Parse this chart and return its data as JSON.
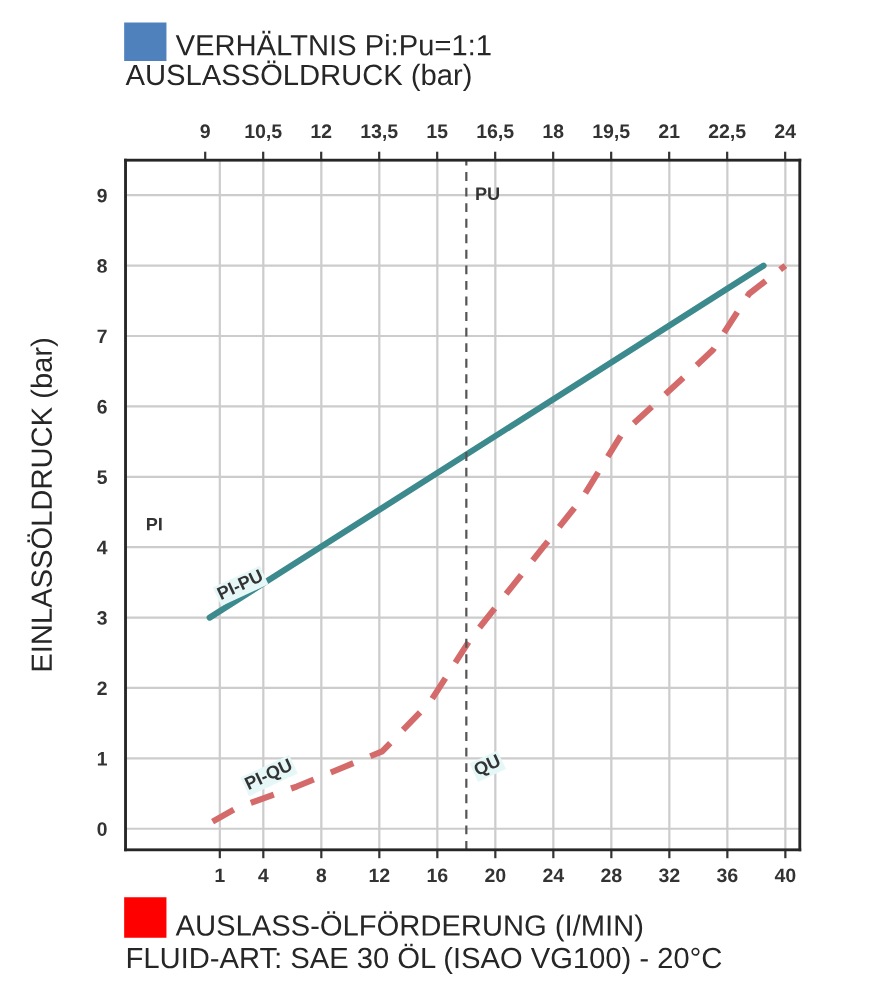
{
  "chart_data": {
    "type": "line",
    "title": "VERHÄLTNIS Pi:Pu=1:1",
    "x2label": "AUSLASSÖLDRUCK (bar)",
    "xlabel": "AUSLASS-ÖLFÖRDERUNG (I/MIN)",
    "ylabel": "EINLASSÖLDRUCK (bar)",
    "series": [
      {
        "color": "#3d8a8e",
        "line_style": "solid",
        "x": [
          0.3,
          38.5
        ],
        "values": [
          3.0,
          8.0
        ]
      },
      {
        "color": "#d46a6a",
        "line_style": "dashed",
        "x": [
          0.5,
          2.2,
          6.3,
          12.2,
          15.5,
          18.3,
          23.3,
          26,
          28.7,
          32.4,
          35,
          37.5,
          40
        ],
        "values": [
          0.1,
          0.3,
          0.6,
          1.1,
          1.8,
          2.7,
          4.0,
          4.7,
          5.6,
          6.3,
          6.8,
          7.6,
          8.0
        ]
      }
    ],
    "xlim": [
      -5.5,
      41
    ],
    "xticks": [
      1,
      4,
      8,
      12,
      16,
      20,
      24,
      28,
      32,
      36,
      40
    ],
    "x2lim": [
      6.94,
      24.38
    ],
    "x2ticks": [
      9,
      {
        "value": 10.5,
        "label": "10,5"
      },
      12,
      {
        "value": 13.5,
        "label": "13,5"
      },
      15,
      {
        "value": 16.5,
        "label": "16,5"
      },
      18,
      {
        "value": 19.5,
        "label": "19,5"
      },
      21,
      {
        "value": 22.5,
        "label": "22,5"
      },
      24
    ],
    "ylim": [
      -0.3,
      9.5
    ],
    "yticks": [
      0,
      1,
      2,
      3,
      4,
      5,
      6,
      7,
      8,
      9
    ],
    "grid": true,
    "ref_lines": [
      {
        "axis": "x",
        "value": 18,
        "label": "PU",
        "color": "#555555",
        "line_style": "dashed"
      }
    ],
    "annotations": [
      {
        "text": "QU",
        "x": 18,
        "y": 0.5
      },
      "PI",
      {
        "text": "PI-PU",
        "x": 0.3,
        "y": 3.0
      },
      {
        "text": "PI-QU",
        "x": 2.2,
        "y": 0.3
      },
      "FLUID-ART: SAE 30 ÖL (ISAO VG100) - 20°C"
    ]
  }
}
